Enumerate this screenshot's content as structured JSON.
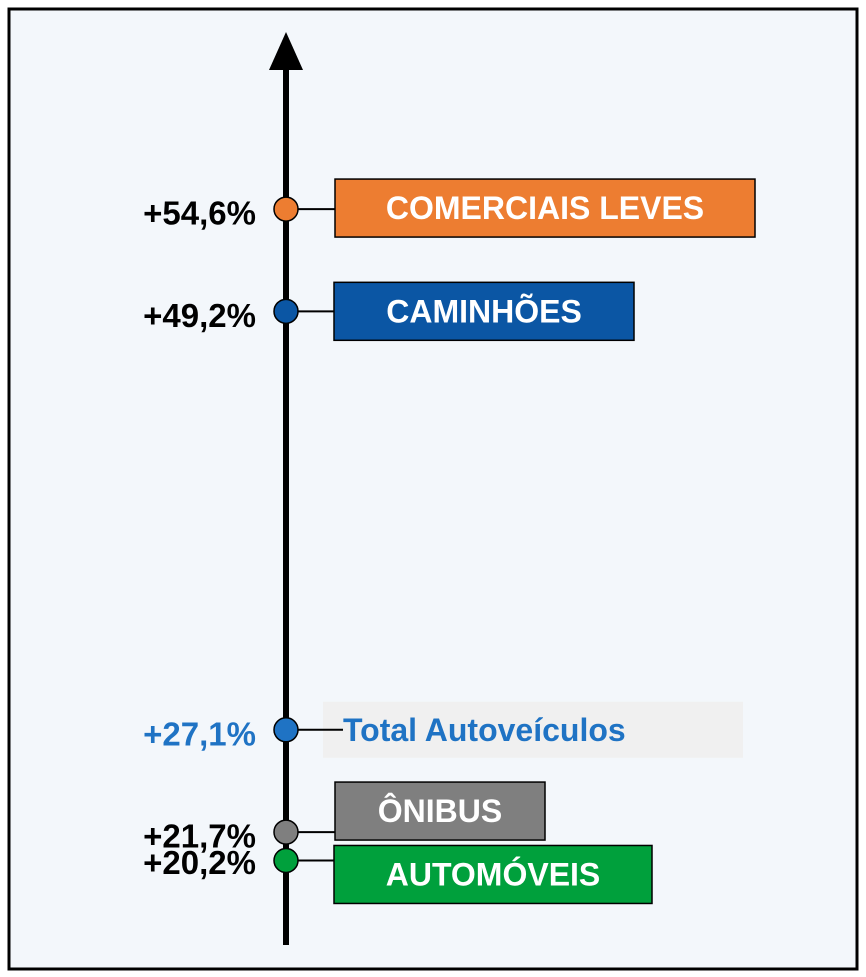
{
  "chart_data": {
    "type": "dot",
    "categories": [
      "COMERCIAIS LEVES",
      "CAMINHÕES",
      "Total Autoveículos",
      "ÔNIBUS",
      "AUTOMÓVEIS"
    ],
    "values": [
      54.6,
      49.2,
      27.1,
      21.7,
      20.2
    ],
    "value_labels": [
      "+54,6%",
      "+49,2%",
      "+27,1%",
      "+21,7%",
      "+20,2%"
    ],
    "colors": [
      "#ed7d31",
      "#0b56a4",
      "#1f73c4",
      "#7f7f7f",
      "#00a03c"
    ],
    "ylim": [
      16,
      63
    ]
  }
}
